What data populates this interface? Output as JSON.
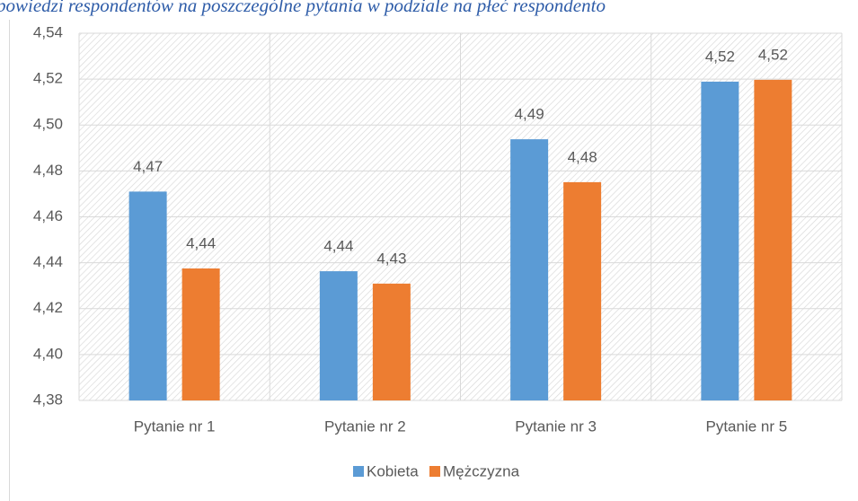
{
  "chart_data": {
    "type": "bar",
    "title": "powiedzi respondentów na poszczególne pytania w podziale na płeć respondento",
    "categories": [
      "Pytanie nr 1",
      "Pytanie nr 2",
      "Pytanie nr 3",
      "Pytanie nr 5"
    ],
    "series": [
      {
        "name": "Kobieta",
        "color": "#5b9bd5",
        "values": [
          4.471,
          4.4363,
          4.4938,
          4.5189
        ],
        "value_labels": [
          "4,47",
          "4,44",
          "4,49",
          "4,52"
        ]
      },
      {
        "name": "Mężczyzna",
        "color": "#ed7d31",
        "values": [
          4.4375,
          4.4309,
          4.4751,
          4.5197
        ],
        "value_labels": [
          "4,44",
          "4,43",
          "4,48",
          "4,52"
        ]
      }
    ],
    "ylim": [
      4.38,
      4.54
    ],
    "yticks": [
      {
        "value": 4.38,
        "label": "4,38"
      },
      {
        "value": 4.4,
        "label": "4,40"
      },
      {
        "value": 4.42,
        "label": "4,42"
      },
      {
        "value": 4.44,
        "label": "4,44"
      },
      {
        "value": 4.46,
        "label": "4,46"
      },
      {
        "value": 4.48,
        "label": "4,48"
      },
      {
        "value": 4.5,
        "label": "4,50"
      },
      {
        "value": 4.52,
        "label": "4,52"
      },
      {
        "value": 4.54,
        "label": "4,54"
      }
    ],
    "grid": true,
    "legend": "bottom"
  }
}
